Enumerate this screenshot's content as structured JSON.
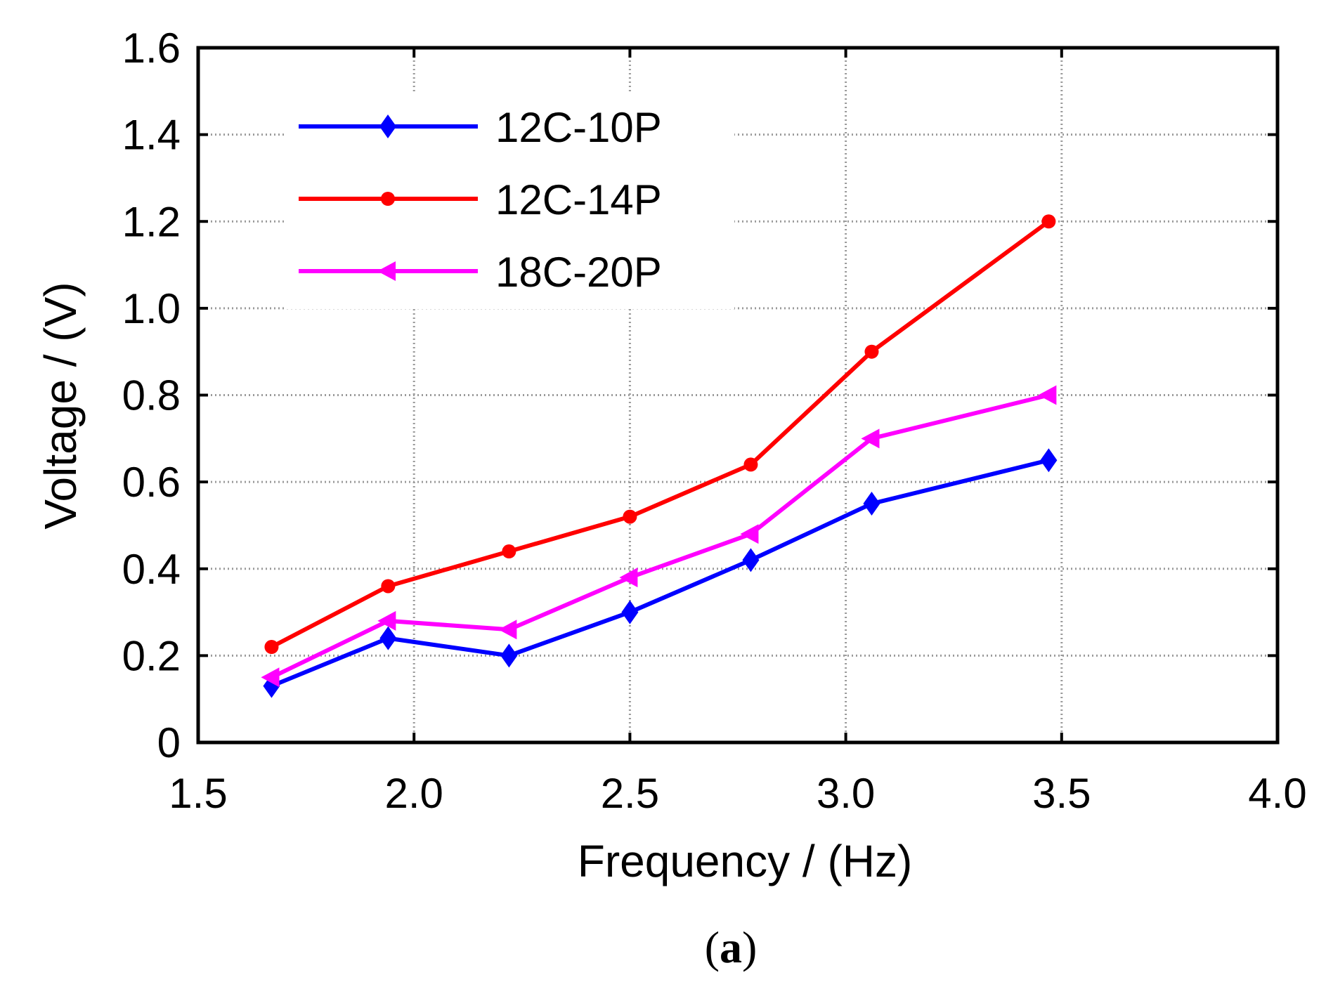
{
  "chart_data": {
    "type": "line",
    "title": "",
    "xlabel": "Frequency / (Hz)",
    "ylabel": "Voltage / (V)",
    "xlim": [
      1.5,
      4.0
    ],
    "ylim": [
      0,
      1.6
    ],
    "xticks": [
      1.5,
      2.0,
      2.5,
      3.0,
      3.5,
      4.0
    ],
    "xtick_labels": [
      "1.5",
      "2.0",
      "2.5",
      "3.0",
      "3.5",
      "4.0"
    ],
    "yticks": [
      0,
      0.2,
      0.4,
      0.6,
      0.8,
      1.0,
      1.2,
      1.4,
      1.6
    ],
    "ytick_labels": [
      "0",
      "0.2",
      "0.4",
      "0.6",
      "0.8",
      "1.0",
      "1.2",
      "1.4",
      "1.6"
    ],
    "grid": true,
    "legend_position": "top-left",
    "x": [
      1.67,
      1.94,
      2.22,
      2.5,
      2.78,
      3.06,
      3.47
    ],
    "series": [
      {
        "name": "12C-10P",
        "color": "#0000ff",
        "marker": "diamond",
        "values": [
          0.13,
          0.24,
          0.2,
          0.3,
          0.42,
          0.55,
          0.65
        ]
      },
      {
        "name": "12C-14P",
        "color": "#ff0000",
        "marker": "circle",
        "values": [
          0.22,
          0.36,
          0.44,
          0.52,
          0.64,
          0.9,
          1.2
        ]
      },
      {
        "name": "18C-20P",
        "color": "#ff00ff",
        "marker": "triangle-left",
        "values": [
          0.15,
          0.28,
          0.26,
          0.38,
          0.48,
          0.7,
          0.8
        ]
      }
    ],
    "caption": "(a)"
  }
}
